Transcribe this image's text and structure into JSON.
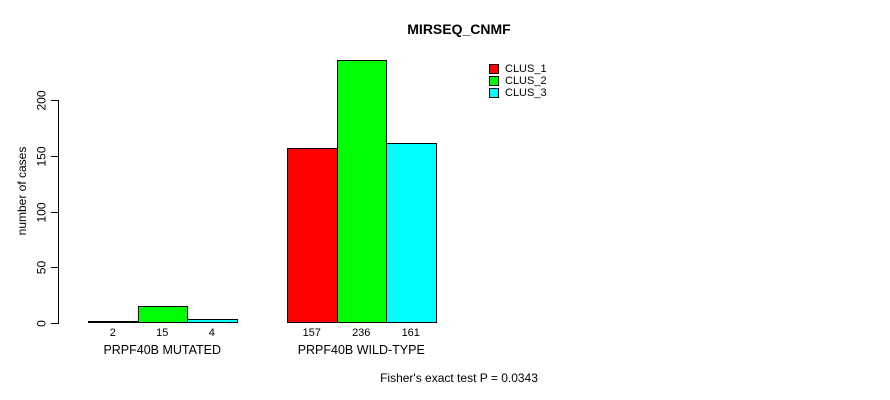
{
  "chart_data": {
    "type": "bar",
    "title": "MIRSEQ_CNMF",
    "ylabel": "number of cases",
    "xlabel": "",
    "categories": [
      "PRPF40B MUTATED",
      "PRPF40B WILD-TYPE"
    ],
    "series": [
      {
        "name": "CLUS_1",
        "color": "#ff0000",
        "values": [
          2,
          157
        ]
      },
      {
        "name": "CLUS_2",
        "color": "#00ff00",
        "values": [
          15,
          236
        ]
      },
      {
        "name": "CLUS_3",
        "color": "#00ffff",
        "values": [
          4,
          161
        ]
      }
    ],
    "bar_value_labels": [
      [
        "2",
        "15",
        "4"
      ],
      [
        "157",
        "236",
        "161"
      ]
    ],
    "yticks": [
      "0",
      "50",
      "100",
      "150",
      "200"
    ],
    "ylim": [
      0,
      245
    ],
    "grid": false,
    "legend_position": "top-right",
    "legend_box": false,
    "annotation": "Fisher's exact test P = 0.0343"
  }
}
